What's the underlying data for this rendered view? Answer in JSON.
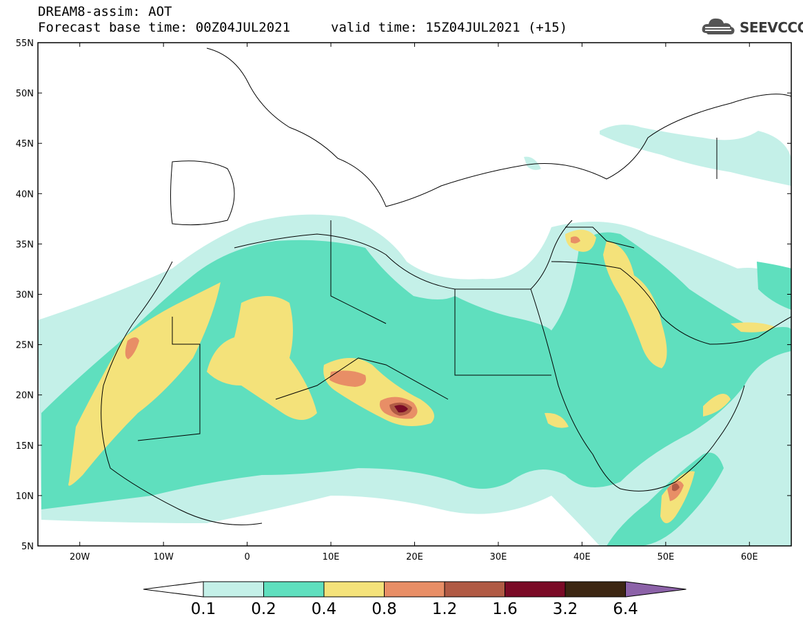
{
  "header": {
    "line1": "DREAM8-assim: AOT",
    "line2": "Forecast base time: 00Z04JUL2021",
    "valid": "valid time: 15Z04JUL2021 (+15)"
  },
  "logo": {
    "text": "SEEVCCC",
    "icon": "cloud-icon"
  },
  "map": {
    "lat_labels": [
      "55N",
      "50N",
      "45N",
      "40N",
      "35N",
      "30N",
      "25N",
      "20N",
      "15N",
      "10N",
      "5N"
    ],
    "lon_labels": [
      "20W",
      "10W",
      "0",
      "10E",
      "20E",
      "30E",
      "40E",
      "50E",
      "60E"
    ],
    "lat_range": [
      5,
      55
    ],
    "lon_range": [
      -25,
      65
    ]
  },
  "colorbar": {
    "labels": [
      "0.1",
      "0.2",
      "0.4",
      "0.8",
      "1.2",
      "1.6",
      "3.2",
      "6.4"
    ],
    "colors": [
      "#c4f0e8",
      "#5fdfbe",
      "#f4e27a",
      "#e88e66",
      "#b05a44",
      "#7a0a26",
      "#3c2612",
      "#8c62a8"
    ],
    "under_color": "#ffffff"
  },
  "colors": {
    "ocean_bg": "#ffffff",
    "land_line": "#000000"
  }
}
